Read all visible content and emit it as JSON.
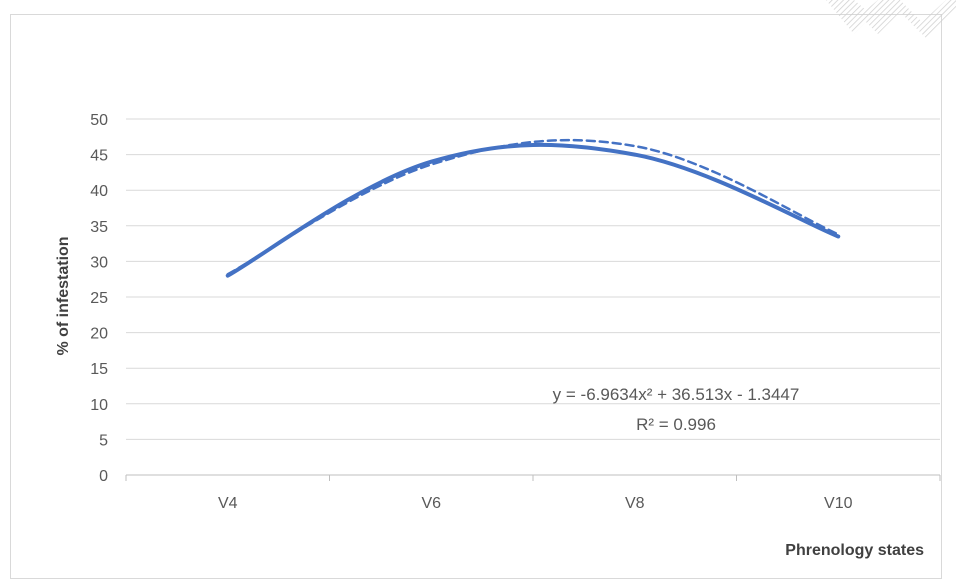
{
  "chart_data": {
    "type": "line",
    "title": "",
    "xlabel": "Phrenology states",
    "ylabel": "% of infestation",
    "categories": [
      "V4",
      "V6",
      "V8",
      "V10"
    ],
    "ylim": [
      0,
      50
    ],
    "yticks": [
      0,
      5,
      10,
      15,
      20,
      25,
      30,
      35,
      40,
      45,
      50
    ],
    "grid": true,
    "series": [
      {
        "values": [
          28,
          44,
          45,
          33.5
        ],
        "style": "solid",
        "color": "#4472c4"
      },
      {
        "values": [
          28.2,
          43.6,
          46.2,
          33.8
        ],
        "style": "dashed",
        "color": "#4472c4"
      }
    ],
    "trendline": {
      "type": "polynomial-2",
      "a": -6.9634,
      "b": 36.513,
      "c": -1.3447,
      "equation": "y = -6.9634x² + 36.513x - 1.3447",
      "r2": "R² = 0.996"
    }
  }
}
